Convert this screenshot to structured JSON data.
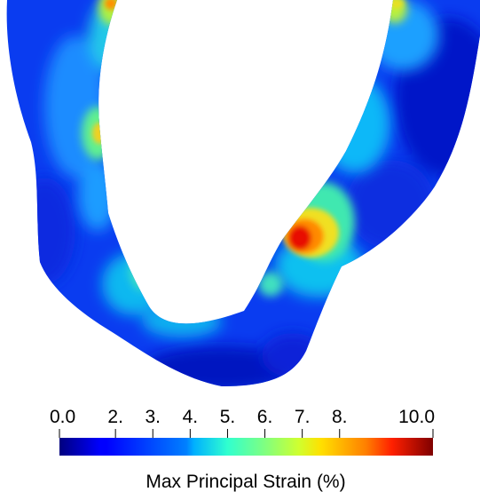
{
  "colorbar": {
    "title": "Max Principal Strain (%)",
    "min": 0,
    "max": 10,
    "ticks": [
      {
        "value": 0,
        "label": "0.0"
      },
      {
        "value": 1.5,
        "label": "2."
      },
      {
        "value": 2.5,
        "label": "3."
      },
      {
        "value": 3.5,
        "label": "4."
      },
      {
        "value": 4.5,
        "label": "5."
      },
      {
        "value": 5.5,
        "label": "6."
      },
      {
        "value": 6.5,
        "label": "7."
      },
      {
        "value": 7.5,
        "label": "8."
      },
      {
        "value": 10,
        "label": "10.0"
      }
    ],
    "colormap": "jet"
  },
  "strain_map": {
    "hotspot_value": 9.5,
    "colors": {
      "background": "#ffffff",
      "low": "#00007f",
      "high": "#7f0000"
    }
  }
}
